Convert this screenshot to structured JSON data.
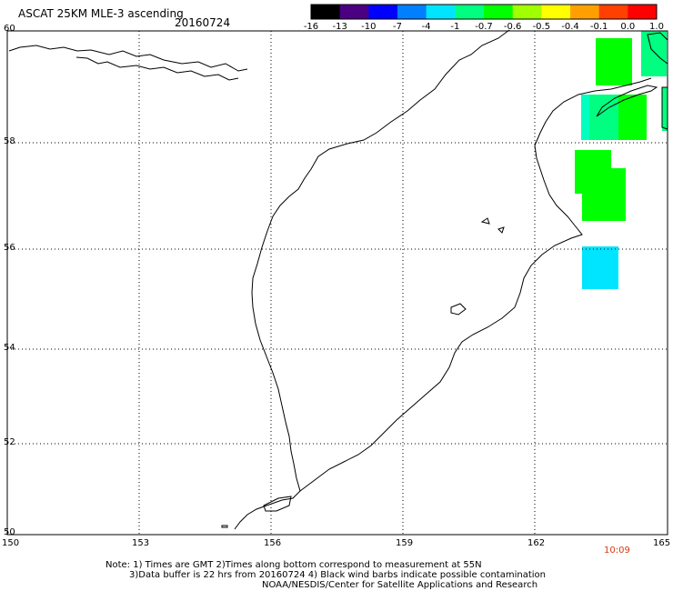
{
  "header": {
    "title": "ASCAT 25KM MLE-3 ascending",
    "date": "20160724"
  },
  "colorbar": {
    "labels": [
      "-16",
      "-13",
      "-10",
      "-7",
      "-4",
      "-1",
      "-0.7",
      "-0.6",
      "-0.5",
      "-0.4",
      "-0.1",
      "0.0",
      "1.0"
    ],
    "colors": [
      "#000000",
      "#4b0082",
      "#0000ff",
      "#0080ff",
      "#00e5ff",
      "#00ff80",
      "#00ff00",
      "#a0ff00",
      "#ffff00",
      "#ffa000",
      "#ff4000",
      "#ff0000"
    ]
  },
  "axes": {
    "lat_labels": [
      "60",
      "58",
      "56",
      "54",
      "52",
      "50"
    ],
    "lon_labels": [
      "150",
      "153",
      "156",
      "159",
      "162",
      "165"
    ]
  },
  "time_label": "10:09",
  "notes": {
    "line1": "Note: 1) Times are GMT 2)Times along bottom correspond to measurement at 55N",
    "line2": "3)Data buffer is 22 hrs from 20160724 4) Black wind barbs indicate possible contamination",
    "line3": "NOAA/NESDIS/Center for Satellite Applications and Research"
  },
  "swath_colors": {
    "green": "#00ff00",
    "sea_green": "#00ff80",
    "cyan": "#00ffff",
    "teal": "#00e6a0"
  }
}
